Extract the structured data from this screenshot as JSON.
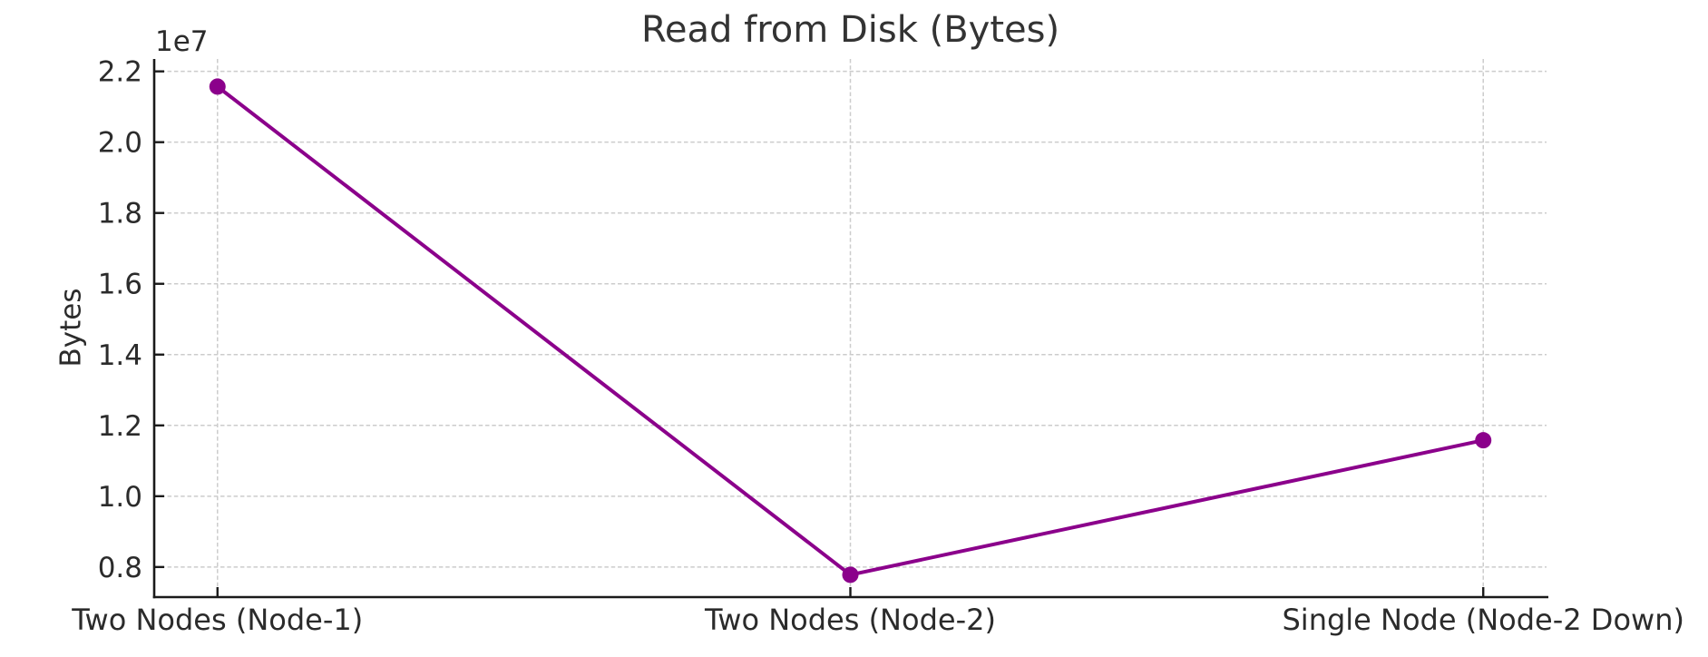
{
  "page": {
    "background": "#ffffff"
  },
  "chart_data": {
    "type": "line",
    "title": "Read from Disk (Bytes)",
    "xlabel": "",
    "ylabel": "Bytes",
    "y_offset_text": "1e7",
    "categories": [
      "Two Nodes (Node-1)",
      "Two Nodes (Node-2)",
      "Single Node (Node-2 Down)"
    ],
    "series": [
      {
        "name": "Read from Disk (Bytes)",
        "color": "#8B008B",
        "values": [
          21570000,
          7780000,
          11580000
        ]
      }
    ],
    "ylim": [
      7150000,
      22350000
    ],
    "y_ticks": [
      {
        "value": 8000000,
        "label": "0.8"
      },
      {
        "value": 10000000,
        "label": "1.0"
      },
      {
        "value": 12000000,
        "label": "1.2"
      },
      {
        "value": 14000000,
        "label": "1.4"
      },
      {
        "value": 16000000,
        "label": "1.6"
      },
      {
        "value": 18000000,
        "label": "1.8"
      },
      {
        "value": 20000000,
        "label": "2.0"
      },
      {
        "value": 22000000,
        "label": "2.2"
      }
    ],
    "grid": {
      "show": true,
      "style": "dashed",
      "color": "#cccccc"
    },
    "axis_color": "#1a1a1a",
    "text_color": "#2b2b2b",
    "title_color": "#333333",
    "legend_visible": false
  }
}
